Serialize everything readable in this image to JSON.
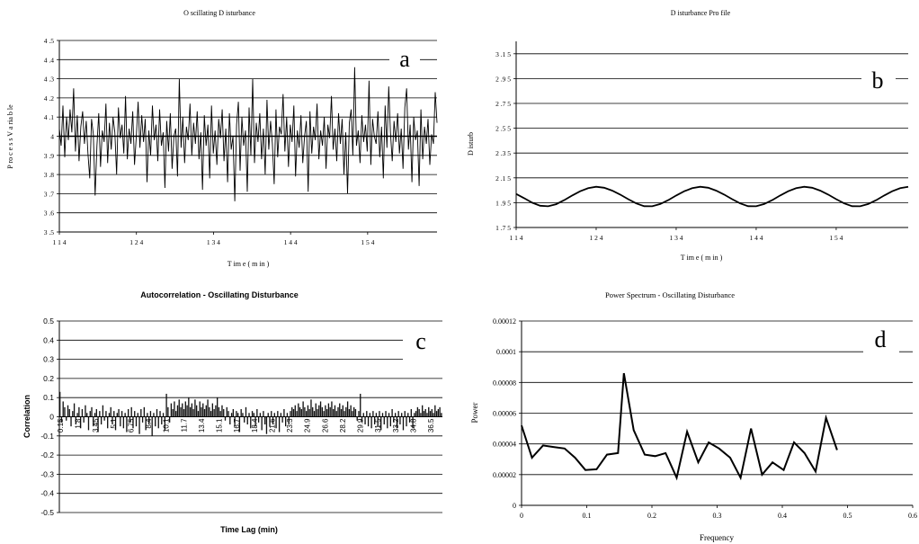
{
  "figure": {
    "panels": [
      {
        "id": "a",
        "letter": "a"
      },
      {
        "id": "b",
        "letter": "b"
      },
      {
        "id": "c",
        "letter": "c"
      },
      {
        "id": "d",
        "letter": "d"
      }
    ]
  },
  "chart_data": [
    {
      "panel": "a",
      "type": "line",
      "title": "O scillating  D isturbance",
      "xlabel": "T im e  ( m in )",
      "ylabel": "P ro c e s s  V a ria b le",
      "xlim": [
        114,
        163
      ],
      "ylim": [
        3.5,
        4.5
      ],
      "xticks": [
        114,
        124,
        134,
        144,
        154
      ],
      "xtick_labels": [
        "1 1 4",
        "1 2 4",
        "1 3 4",
        "1 4 4",
        "1 5 4"
      ],
      "yticks": [
        3.5,
        3.6,
        3.7,
        3.8,
        3.9,
        4.0,
        4.1,
        4.2,
        4.3,
        4.4,
        4.5
      ],
      "ytick_labels": [
        "3 .5",
        "3 .6",
        "3 .7",
        "3 .8",
        "3 .9",
        "4",
        "4 .1",
        "4 .2",
        "4 .3",
        "4 .4",
        "4 .5"
      ],
      "grid": true,
      "series": [
        {
          "values": [
            4.04,
            3.95,
            4.16,
            3.89,
            4.1,
            3.98,
            4.14,
            4.02,
            4.25,
            3.92,
            4.11,
            3.87,
            4.05,
            4.13,
            3.96,
            4.08,
            3.91,
            3.78,
            4.09,
            4.01,
            3.69,
            3.95,
            4.12,
            3.84,
            4.03,
            3.97,
            4.17,
            3.86,
            4.07,
            3.93,
            4.1,
            4.02,
            3.8,
            4.15,
            3.99,
            4.06,
            3.91,
            4.21,
            3.88,
            4.04,
            3.96,
            4.13,
            3.85,
            4.0,
            4.18,
            3.94,
            4.11,
            3.97,
            4.09,
            3.76,
            4.03,
            3.9,
            4.16,
            3.98,
            4.06,
            3.87,
            4.14,
            3.95,
            4.02,
            3.73,
            4.08,
            3.92,
            4.12,
            3.83,
            4.0,
            4.04,
            3.79,
            4.3,
            3.94,
            4.1,
            3.86,
            4.05,
            3.98,
            4.17,
            3.9,
            4.07,
            3.96,
            4.13,
            3.88,
            4.02,
            3.72,
            4.11,
            3.95,
            4.06,
            3.78,
            4.16,
            3.91,
            4.03,
            3.85,
            4.09,
            3.99,
            4.14,
            3.87,
            4.04,
            3.76,
            4.12,
            3.93,
            4.0,
            3.66,
            4.06,
            4.18,
            3.82,
            4.1,
            3.95,
            4.03,
            3.71,
            4.15,
            3.9,
            4.3,
            3.86,
            4.07,
            3.97,
            4.12,
            3.88,
            4.04,
            3.8,
            4.19,
            3.93,
            4.08,
            3.96,
            3.75,
            4.14,
            3.89,
            4.05,
            4.01,
            4.22,
            3.92,
            4.1,
            3.84,
            4.06,
            3.97,
            4.16,
            3.79,
            4.03,
            3.94,
            4.11,
            3.86,
            4.0,
            4.08,
            3.71,
            4.13,
            3.91,
            4.05,
            3.98,
            4.17,
            3.88,
            4.03,
            3.95,
            4.1,
            3.83,
            4.06,
            3.99,
            4.21,
            3.93,
            4.04,
            3.87,
            4.12,
            3.96,
            4.09,
            3.8,
            4.02,
            3.7,
            4.07,
            4.14,
            3.9,
            4.36,
            3.95,
            4.03,
            3.86,
            4.11,
            3.97,
            4.06,
            3.92,
            4.29,
            3.85,
            4.09,
            4.0,
            3.96,
            4.13,
            3.89,
            4.05,
            3.78,
            4.16,
            3.94,
            4.26,
            4.02,
            3.87,
            4.08,
            3.97,
            4.12,
            3.91,
            4.04,
            3.83,
            4.15,
            4.25,
            3.93,
            4.06,
            3.76,
            4.1,
            3.98,
            4.03,
            3.74,
            4.14,
            3.88,
            4.05,
            3.96,
            4.09,
            3.85,
            4.01,
            3.96,
            4.23,
            4.07
          ]
        }
      ]
    },
    {
      "panel": "b",
      "type": "line",
      "title": "D isturbance Pro file",
      "xlabel": "T im e  ( m in )",
      "ylabel": "D isturb",
      "xlim": [
        114,
        163
      ],
      "ylim": [
        1.75,
        3.25
      ],
      "xticks": [
        114,
        124,
        134,
        144,
        154
      ],
      "xtick_labels": [
        "1 1 4",
        "1 2 4",
        "1 3 4",
        "1 4 4",
        "1 5 4"
      ],
      "yticks": [
        1.75,
        1.95,
        2.15,
        2.35,
        2.55,
        2.75,
        2.95,
        3.15
      ],
      "ytick_labels": [
        "1 .7 5",
        "1 .9 5",
        "2 .1 5",
        "2 .3 5",
        "2 .5 5",
        "2 .7 5",
        "2 .9 5",
        "3 .1 5"
      ],
      "grid": true,
      "series": [
        {
          "x": [
            114,
            115,
            116,
            117,
            118,
            119,
            120,
            121,
            122,
            123,
            124,
            125,
            126,
            127,
            128,
            129,
            130,
            131,
            132,
            133,
            134,
            135,
            136,
            137,
            138,
            139,
            140,
            141,
            142,
            143,
            144,
            145,
            146,
            147,
            148,
            149,
            150,
            151,
            152,
            153,
            154,
            155,
            156,
            157,
            158,
            159,
            160,
            161,
            162,
            163
          ],
          "values": [
            2.02,
            1.986,
            1.95,
            1.925,
            1.921,
            1.938,
            1.97,
            2.008,
            2.042,
            2.067,
            2.078,
            2.07,
            2.047,
            2.015,
            1.978,
            1.944,
            1.922,
            1.921,
            1.939,
            1.97,
            2.008,
            2.042,
            2.067,
            2.078,
            2.07,
            2.047,
            2.015,
            1.978,
            1.944,
            1.922,
            1.921,
            1.939,
            1.97,
            2.008,
            2.042,
            2.067,
            2.078,
            2.07,
            2.047,
            2.015,
            1.978,
            1.944,
            1.922,
            1.921,
            1.939,
            1.97,
            2.008,
            2.042,
            2.067,
            2.078
          ]
        }
      ]
    },
    {
      "panel": "c",
      "type": "bar",
      "title": "Autocorrelation - Oscillating  Disturbance",
      "xlabel": "Time Lag (min)",
      "ylabel": "Correlation",
      "ylim": [
        -0.5,
        0.5
      ],
      "yticks": [
        -0.5,
        -0.4,
        -0.3,
        -0.2,
        -0.1,
        0,
        0.1,
        0.2,
        0.3,
        0.4,
        0.5
      ],
      "ytick_labels": [
        "-0.5",
        "-0.4",
        "-0.3",
        "-0.2",
        "-0.1",
        "0",
        "0.1",
        "0.2",
        "0.3",
        "0.4",
        "0.5"
      ],
      "xtick_labels": [
        "0.15",
        "1.8",
        "3.45",
        "5.1",
        "6.75",
        "8.4",
        "10.1",
        "11.7",
        "13.4",
        "15.1",
        "16.7",
        "18.4",
        "21.6",
        "23.3",
        "24.9",
        "26.6",
        "28.2",
        "29.9",
        "31.5",
        "33.2",
        "34.8",
        "36.5"
      ],
      "grid": true,
      "values": [
        0.13,
        -0.03,
        0.08,
        0.05,
        -0.02,
        0.06,
        0.04,
        -0.05,
        0.03,
        0.07,
        -0.04,
        0.02,
        0.05,
        -0.06,
        0.04,
        -0.03,
        0.06,
        0.02,
        -0.07,
        0.03,
        0.05,
        -0.05,
        0.02,
        0.04,
        -0.08,
        0.03,
        -0.04,
        0.06,
        -0.02,
        0.03,
        -0.06,
        0.02,
        0.05,
        -0.04,
        0.03,
        -0.07,
        0.02,
        0.04,
        -0.05,
        0.03,
        -0.06,
        0.02,
        -0.08,
        0.04,
        -0.03,
        0.05,
        -0.06,
        0.03,
        -0.05,
        0.02,
        -0.09,
        0.04,
        -0.03,
        0.05,
        -0.07,
        0.02,
        -0.04,
        0.03,
        -0.1,
        0.02,
        -0.05,
        0.04,
        -0.06,
        0.03,
        -0.04,
        0.02,
        -0.07,
        0.12,
        0.05,
        -0.03,
        0.07,
        0.04,
        0.08,
        0.03,
        0.06,
        0.09,
        0.05,
        0.07,
        0.04,
        0.08,
        0.06,
        0.1,
        0.05,
        0.07,
        0.04,
        0.09,
        0.06,
        0.03,
        0.08,
        0.05,
        0.07,
        0.04,
        0.06,
        0.09,
        0.05,
        0.03,
        0.07,
        0.04,
        0.06,
        0.1,
        0.05,
        0.03,
        0.06,
        0.04,
        -0.02,
        0.05,
        0.03,
        -0.04,
        0.02,
        0.04,
        -0.05,
        0.03,
        0.02,
        -0.08,
        0.04,
        0.02,
        -0.03,
        0.05,
        -0.04,
        0.02,
        -0.06,
        0.03,
        0.02,
        -0.05,
        0.04,
        -0.03,
        0.02,
        -0.07,
        0.03,
        -0.04,
        -0.09,
        0.02,
        -0.05,
        0.03,
        -0.04,
        0.02,
        -0.06,
        0.03,
        -0.08,
        0.02,
        -0.03,
        0.04,
        -0.05,
        0.02,
        -0.04,
        0.03,
        0.05,
        0.04,
        0.06,
        0.03,
        0.07,
        0.05,
        0.04,
        0.08,
        0.05,
        0.03,
        0.06,
        0.04,
        0.09,
        0.05,
        0.03,
        0.07,
        0.04,
        0.06,
        0.08,
        0.05,
        0.03,
        0.06,
        0.04,
        0.07,
        0.05,
        0.08,
        0.04,
        0.06,
        0.03,
        0.05,
        0.07,
        0.04,
        0.06,
        0.03,
        0.05,
        0.08,
        0.04,
        0.06,
        0.03,
        0.05,
        0.04,
        -0.02,
        0.03,
        0.12,
        -0.03,
        0.02,
        -0.04,
        0.03,
        -0.05,
        0.02,
        -0.06,
        0.03,
        -0.04,
        0.02,
        -0.05,
        0.03,
        -0.07,
        0.02,
        -0.04,
        0.03,
        -0.06,
        0.02,
        -0.05,
        0.04,
        -0.03,
        0.02,
        -0.06,
        0.03,
        -0.04,
        0.02,
        -0.07,
        0.03,
        -0.05,
        0.02,
        -0.03,
        0.04,
        -0.06,
        0.02,
        0.03,
        0.05,
        0.04,
        0.02,
        0.06,
        0.03,
        0.04,
        0.02,
        0.05,
        0.03,
        0.04,
        0.02,
        0.06,
        0.03,
        0.04,
        0.05,
        0.02
      ]
    },
    {
      "panel": "d",
      "type": "line",
      "title": "Power Spectrum - Oscillating Disturbance",
      "xlabel": "Frequency",
      "ylabel": "Power",
      "xlim": [
        0,
        0.6
      ],
      "ylim": [
        0,
        0.00012
      ],
      "xticks": [
        0,
        0.1,
        0.2,
        0.3,
        0.4,
        0.5,
        0.6
      ],
      "xtick_labels": [
        "0",
        "0.1",
        "0.2",
        "0.3",
        "0.4",
        "0.5",
        "0.6"
      ],
      "yticks": [
        0,
        2e-05,
        4e-05,
        6e-05,
        8e-05,
        0.0001,
        0.00012
      ],
      "ytick_labels": [
        "0",
        "0.00002",
        "0.00004",
        "0.00006",
        "0.00008",
        "0.0001",
        "0.00012"
      ],
      "grid": true,
      "series": [
        {
          "x": [
            0,
            0.016,
            0.033,
            0.049,
            0.066,
            0.082,
            0.098,
            0.115,
            0.131,
            0.148,
            0.157,
            0.172,
            0.189,
            0.205,
            0.221,
            0.238,
            0.254,
            0.271,
            0.287,
            0.303,
            0.32,
            0.336,
            0.352,
            0.369,
            0.385,
            0.402,
            0.418,
            0.434,
            0.451,
            0.467,
            0.484
          ],
          "values": [
            5.2e-05,
            3.1e-05,
            3.9e-05,
            3.8e-05,
            3.7e-05,
            3.1e-05,
            2.3e-05,
            2.35e-05,
            3.3e-05,
            3.4e-05,
            8.6e-05,
            4.9e-05,
            3.3e-05,
            3.2e-05,
            3.4e-05,
            1.8e-05,
            4.8e-05,
            2.8e-05,
            4.1e-05,
            3.7e-05,
            3.1e-05,
            1.8e-05,
            5e-05,
            2e-05,
            2.8e-05,
            2.3e-05,
            4.1e-05,
            3.4e-05,
            2.2e-05,
            5.7e-05,
            3.6e-05
          ]
        }
      ]
    }
  ]
}
